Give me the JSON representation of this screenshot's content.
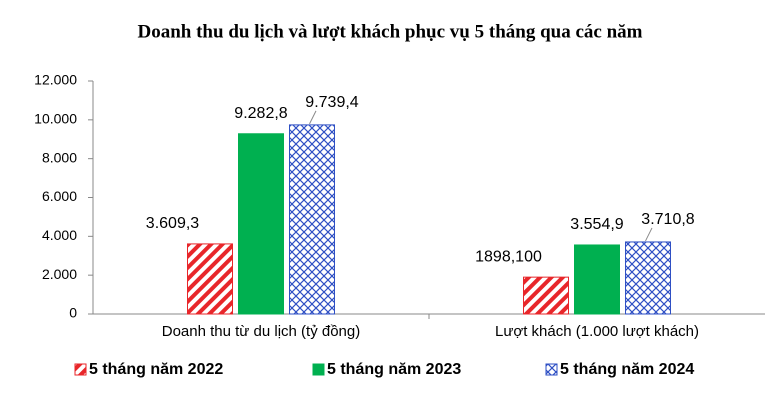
{
  "chart_data": {
    "type": "bar",
    "title": "Doanh thu du lịch và lượt khách phục vụ 5 tháng qua các năm",
    "categories": [
      "Doanh thu từ du lịch (tỷ đồng)",
      "Lượt khách (1.000 lượt khách)"
    ],
    "series": [
      {
        "name": "5 tháng năm 2022",
        "color": "#e8262a",
        "values": [
          3609.3,
          1898.1
        ],
        "value_labels": [
          "3.609,3",
          "1898,100"
        ]
      },
      {
        "name": "5 tháng năm 2023",
        "color": "#00b050",
        "values": [
          9282.8,
          3554.9
        ],
        "value_labels": [
          "9.282,8",
          "3.554,9"
        ]
      },
      {
        "name": "5 tháng năm 2024",
        "color": "#2e4fc4",
        "values": [
          9739.4,
          3710.8
        ],
        "value_labels": [
          "9.739,4",
          "3.710,8"
        ]
      }
    ],
    "ylim": [
      0,
      12000
    ],
    "yticks": [
      0,
      {
        "value": 2000,
        "label": "2.000"
      },
      {
        "value": 4000,
        "label": "4.000"
      },
      {
        "value": 6000,
        "label": "6.000"
      },
      {
        "value": 8000,
        "label": "8.000"
      },
      {
        "value": 10000,
        "label": "10.000"
      },
      {
        "value": 12000,
        "label": "12.000"
      }
    ],
    "grid": false
  }
}
